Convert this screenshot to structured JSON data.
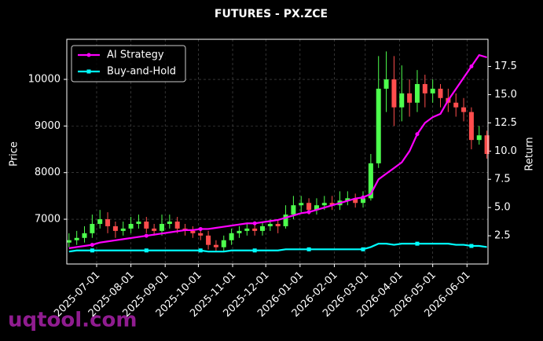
{
  "chart_data": {
    "type": "candlestick",
    "title": "FUTURES - PX.ZCE",
    "ylabel": "Price",
    "y2label": "Return",
    "watermark": "uqtool.com",
    "x": [
      "2025-06-06",
      "2025-06-13",
      "2025-06-20",
      "2025-06-27",
      "2025-07-04",
      "2025-07-11",
      "2025-07-18",
      "2025-07-25",
      "2025-08-01",
      "2025-08-08",
      "2025-08-15",
      "2025-08-22",
      "2025-08-29",
      "2025-09-05",
      "2025-09-12",
      "2025-09-19",
      "2025-09-26",
      "2025-10-03",
      "2025-10-10",
      "2025-10-17",
      "2025-10-24",
      "2025-10-31",
      "2025-11-07",
      "2025-11-14",
      "2025-11-21",
      "2025-11-28",
      "2025-12-05",
      "2025-12-12",
      "2025-12-19",
      "2025-12-26",
      "2026-01-02",
      "2026-01-09",
      "2026-01-16",
      "2026-01-23",
      "2026-01-30",
      "2026-02-06",
      "2026-02-13",
      "2026-02-20",
      "2026-02-27",
      "2026-03-06",
      "2026-03-13",
      "2026-03-20",
      "2026-03-27",
      "2026-04-03",
      "2026-04-10",
      "2026-04-17",
      "2026-04-24",
      "2026-05-01",
      "2026-05-08",
      "2026-05-15",
      "2026-05-22",
      "2026-05-29",
      "2026-06-05",
      "2026-06-12",
      "2026-06-19"
    ],
    "candles": {
      "open": [
        6500,
        6550,
        6600,
        6700,
        6900,
        7000,
        6850,
        6750,
        6800,
        6900,
        6950,
        6800,
        6750,
        6900,
        6950,
        6800,
        6750,
        6700,
        6650,
        6450,
        6400,
        6550,
        6700,
        6750,
        6800,
        6750,
        6850,
        6900,
        6850,
        7100,
        7300,
        7350,
        7200,
        7300,
        7350,
        7300,
        7400,
        7450,
        7350,
        7450,
        8200,
        9800,
        10000,
        9400,
        9700,
        9500,
        9900,
        9700,
        9800,
        9600,
        9500,
        9400,
        9300,
        8700,
        8800
      ],
      "high": [
        6700,
        6750,
        6850,
        7100,
        7200,
        7150,
        6950,
        6950,
        7050,
        7100,
        7050,
        6900,
        7100,
        7100,
        7050,
        6900,
        6850,
        6800,
        6750,
        6550,
        6650,
        6800,
        6850,
        6900,
        6900,
        6950,
        7000,
        7000,
        7300,
        7500,
        7500,
        7450,
        7450,
        7500,
        7500,
        7600,
        7600,
        7550,
        7600,
        8400,
        10500,
        10600,
        10500,
        10300,
        10000,
        10200,
        10100,
        10000,
        9900,
        9800,
        9700,
        9600,
        9400,
        9000,
        8900
      ],
      "low": [
        6400,
        6450,
        6500,
        6600,
        6800,
        6700,
        6600,
        6650,
        6700,
        6800,
        6700,
        6650,
        6650,
        6800,
        6700,
        6650,
        6600,
        6550,
        6350,
        6300,
        6300,
        6450,
        6600,
        6650,
        6650,
        6650,
        6750,
        6700,
        6800,
        7000,
        7150,
        7100,
        7100,
        7200,
        7200,
        7200,
        7300,
        7250,
        7250,
        7400,
        8100,
        9300,
        9000,
        9100,
        9200,
        9300,
        9400,
        9500,
        9400,
        9300,
        9200,
        9100,
        8500,
        8600,
        8300
      ],
      "close": [
        6550,
        6600,
        6700,
        6900,
        7000,
        6850,
        6750,
        6800,
        6900,
        6950,
        6800,
        6750,
        6900,
        6950,
        6800,
        6750,
        6700,
        6650,
        6450,
        6400,
        6550,
        6700,
        6750,
        6800,
        6750,
        6850,
        6900,
        6850,
        7100,
        7300,
        7350,
        7200,
        7300,
        7350,
        7300,
        7400,
        7450,
        7350,
        7450,
        8200,
        9800,
        10000,
        9400,
        9700,
        9500,
        9900,
        9700,
        9800,
        9600,
        9500,
        9400,
        9300,
        8700,
        8800,
        8400
      ],
      "up_color": "#4dff4d",
      "down_color": "#ff4d4d"
    },
    "series": [
      {
        "name": "AI Strategy",
        "color": "#ff00ff",
        "axis": "y2",
        "marker": "circle",
        "values": [
          1.4,
          1.5,
          1.6,
          1.7,
          1.9,
          2.0,
          2.1,
          2.2,
          2.3,
          2.4,
          2.5,
          2.6,
          2.7,
          2.8,
          2.9,
          3.0,
          3.0,
          3.1,
          3.1,
          3.2,
          3.3,
          3.4,
          3.5,
          3.6,
          3.6,
          3.7,
          3.8,
          3.9,
          4.1,
          4.3,
          4.5,
          4.6,
          4.8,
          5.0,
          5.2,
          5.4,
          5.6,
          5.8,
          5.9,
          6.2,
          7.5,
          8.0,
          8.5,
          9.0,
          10.0,
          11.5,
          12.5,
          13.0,
          13.3,
          14.5,
          15.5,
          16.5,
          17.5,
          18.5,
          18.3
        ]
      },
      {
        "name": "Buy-and-Hold",
        "color": "#00ffff",
        "axis": "y2",
        "marker": "square",
        "values": [
          1.1,
          1.2,
          1.2,
          1.2,
          1.2,
          1.2,
          1.2,
          1.2,
          1.2,
          1.2,
          1.2,
          1.2,
          1.2,
          1.2,
          1.2,
          1.2,
          1.2,
          1.2,
          1.1,
          1.1,
          1.1,
          1.2,
          1.2,
          1.2,
          1.2,
          1.2,
          1.2,
          1.2,
          1.3,
          1.3,
          1.3,
          1.3,
          1.3,
          1.3,
          1.3,
          1.3,
          1.3,
          1.3,
          1.3,
          1.5,
          1.8,
          1.8,
          1.7,
          1.8,
          1.8,
          1.8,
          1.8,
          1.8,
          1.8,
          1.8,
          1.7,
          1.7,
          1.6,
          1.6,
          1.5
        ]
      }
    ],
    "xlim": [
      "2025-06-04",
      "2026-06-20"
    ],
    "xticks": [
      "2025-07-01",
      "2025-08-01",
      "2025-09-01",
      "2025-10-01",
      "2025-11-01",
      "2025-12-01",
      "2026-01-01",
      "2026-02-01",
      "2026-03-01",
      "2026-04-01",
      "2026-05-01",
      "2026-06-01"
    ],
    "ylim": [
      6040,
      10860
    ],
    "yticks": [
      7000,
      8000,
      9000,
      10000
    ],
    "y2lim": [
      0,
      19.9
    ],
    "y2ticks": [
      2.5,
      {
        "value": 5,
        "label": "5.0"
      },
      7.5,
      {
        "value": 10,
        "label": "10.0"
      },
      12.5,
      {
        "value": 15,
        "label": "15.0"
      },
      17.5
    ],
    "grid": true,
    "legend": "upper left"
  }
}
